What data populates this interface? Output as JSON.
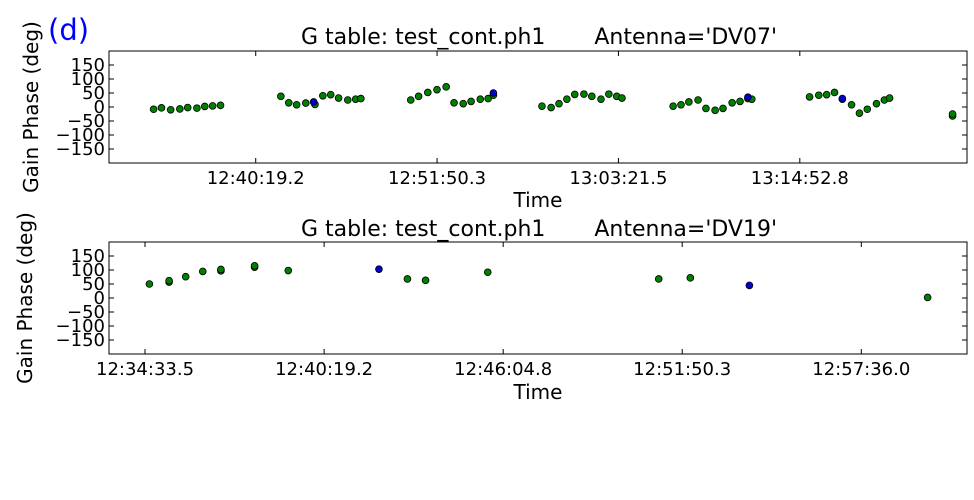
{
  "panel_label": "(d)",
  "colors": {
    "panel_label": "#0000ff",
    "point_fill": "#008000",
    "highlight_fill": "#0000cc",
    "point_stroke": "#000000",
    "axes": "#000000"
  },
  "chart_data": [
    {
      "type": "scatter",
      "title": "G table: test_cont.ph1       Antenna='DV07'",
      "xlabel": "Time",
      "ylabel": "Gain Phase (deg)",
      "ylim": [
        -200,
        200
      ],
      "yticks": [
        -150,
        -100,
        -50,
        0,
        50,
        100,
        150
      ],
      "xlim": [
        "12:31:00",
        "13:25:30"
      ],
      "xticks": [
        "12:40:19.2",
        "12:51:50.3",
        "13:03:21.5",
        "13:14:52.8"
      ],
      "grid": false,
      "series": [
        {
          "color": "green",
          "points": [
            [
              "12:33:50",
              -8
            ],
            [
              "12:34:20",
              -3
            ],
            [
              "12:34:55",
              -10
            ],
            [
              "12:35:30",
              -7
            ],
            [
              "12:36:00",
              -2
            ],
            [
              "12:36:35",
              -4
            ],
            [
              "12:37:05",
              2
            ],
            [
              "12:37:35",
              4
            ],
            [
              "12:38:05",
              6
            ],
            [
              "12:41:55",
              38
            ],
            [
              "12:42:25",
              15
            ],
            [
              "12:42:55",
              8
            ],
            [
              "12:43:30",
              14
            ],
            [
              "12:44:05",
              9
            ],
            [
              "12:44:35",
              40
            ],
            [
              "12:45:05",
              44
            ],
            [
              "12:45:35",
              32
            ],
            [
              "12:46:10",
              25
            ],
            [
              "12:46:40",
              28
            ],
            [
              "12:47:00",
              30
            ],
            [
              "12:50:10",
              25
            ],
            [
              "12:50:40",
              38
            ],
            [
              "12:51:15",
              52
            ],
            [
              "12:51:50",
              62
            ],
            [
              "12:52:25",
              72
            ],
            [
              "12:52:55",
              15
            ],
            [
              "12:53:30",
              12
            ],
            [
              "12:54:00",
              20
            ],
            [
              "12:54:35",
              28
            ],
            [
              "12:55:05",
              30
            ],
            [
              "12:55:25",
              42
            ],
            [
              "12:58:30",
              3
            ],
            [
              "12:59:05",
              -2
            ],
            [
              "12:59:35",
              12
            ],
            [
              "13:00:05",
              28
            ],
            [
              "13:00:35",
              45
            ],
            [
              "13:01:10",
              46
            ],
            [
              "13:01:40",
              38
            ],
            [
              "13:02:15",
              28
            ],
            [
              "13:02:45",
              46
            ],
            [
              "13:03:15",
              38
            ],
            [
              "13:03:35",
              32
            ],
            [
              "13:06:50",
              3
            ],
            [
              "13:07:20",
              8
            ],
            [
              "13:07:50",
              18
            ],
            [
              "13:08:25",
              25
            ],
            [
              "13:08:55",
              -5
            ],
            [
              "13:09:30",
              -12
            ],
            [
              "13:10:00",
              -5
            ],
            [
              "13:10:35",
              15
            ],
            [
              "13:11:05",
              20
            ],
            [
              "13:11:35",
              30
            ],
            [
              "13:11:50",
              28
            ],
            [
              "13:15:30",
              36
            ],
            [
              "13:16:05",
              42
            ],
            [
              "13:16:35",
              44
            ],
            [
              "13:17:05",
              52
            ],
            [
              "13:17:35",
              28
            ],
            [
              "13:18:10",
              8
            ],
            [
              "13:18:40",
              -22
            ],
            [
              "13:19:10",
              -8
            ],
            [
              "13:19:45",
              12
            ],
            [
              "13:20:15",
              25
            ],
            [
              "13:20:35",
              32
            ],
            [
              "13:24:35",
              -32
            ],
            [
              "13:24:35",
              -25
            ]
          ]
        },
        {
          "color": "blue",
          "points": [
            [
              "12:44:00",
              18
            ],
            [
              "12:55:25",
              50
            ],
            [
              "13:11:35",
              35
            ],
            [
              "13:17:35",
              30
            ]
          ]
        }
      ]
    },
    {
      "type": "scatter",
      "title": "G table: test_cont.ph1       Antenna='DV19'",
      "xlabel": "Time",
      "ylabel": "Gain Phase (deg)",
      "ylim": [
        -200,
        200
      ],
      "yticks": [
        -150,
        -100,
        -50,
        0,
        50,
        100,
        150
      ],
      "xlim": [
        "12:33:24",
        "13:01:00"
      ],
      "xticks": [
        "12:34:33.5",
        "12:40:19.2",
        "12:46:04.8",
        "12:51:50.3",
        "12:57:36.0"
      ],
      "grid": false,
      "series": [
        {
          "color": "green",
          "points": [
            [
              "12:34:42",
              50
            ],
            [
              "12:35:20",
              57
            ],
            [
              "12:35:20",
              62
            ],
            [
              "12:35:52",
              76
            ],
            [
              "12:36:25",
              95
            ],
            [
              "12:37:00",
              97
            ],
            [
              "12:37:00",
              102
            ],
            [
              "12:38:05",
              110
            ],
            [
              "12:38:05",
              115
            ],
            [
              "12:39:10",
              98
            ],
            [
              "12:43:00",
              68
            ],
            [
              "12:43:35",
              63
            ],
            [
              "12:45:35",
              92
            ],
            [
              "12:51:05",
              68
            ],
            [
              "12:52:06",
              72
            ],
            [
              "12:59:44",
              2
            ]
          ]
        },
        {
          "color": "blue",
          "points": [
            [
              "12:42:05",
              103
            ],
            [
              "12:54:00",
              45
            ]
          ]
        }
      ]
    }
  ]
}
